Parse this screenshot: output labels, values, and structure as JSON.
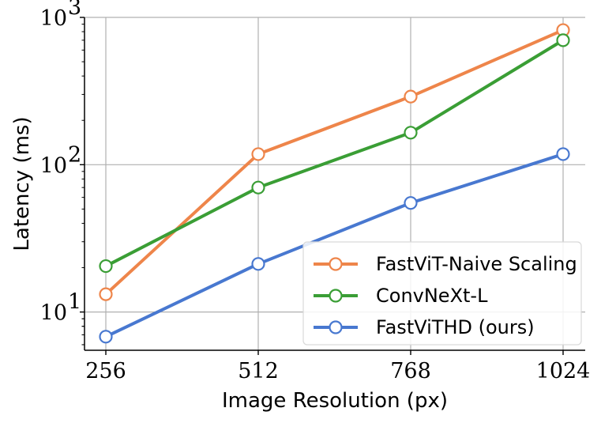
{
  "chart_data": {
    "type": "line",
    "xlabel": "Image Resolution (px)",
    "ylabel": "Latency (ms)",
    "x": [
      256,
      512,
      768,
      1024
    ],
    "x_tick_labels": [
      "256",
      "512",
      "768",
      "1024"
    ],
    "y_scale": "log",
    "ylim": [
      5.5,
      1000
    ],
    "y_ticks": [
      {
        "value": 10,
        "base": "10",
        "exp": "1"
      },
      {
        "value": 100,
        "base": "10",
        "exp": "2"
      },
      {
        "value": 1000,
        "base": "10",
        "exp": "3"
      }
    ],
    "grid": true,
    "legend_position": "lower-right",
    "series": [
      {
        "name": "FastViT-Naive Scaling",
        "color": "#ee854a",
        "values": [
          13.2,
          118,
          290,
          820
        ]
      },
      {
        "name": "ConvNeXt-L",
        "color": "#3a9e35",
        "values": [
          20.5,
          70,
          165,
          700
        ]
      },
      {
        "name": "FastViTHD (ours)",
        "color": "#4878d0",
        "values": [
          6.8,
          21.2,
          55,
          118
        ]
      }
    ]
  }
}
